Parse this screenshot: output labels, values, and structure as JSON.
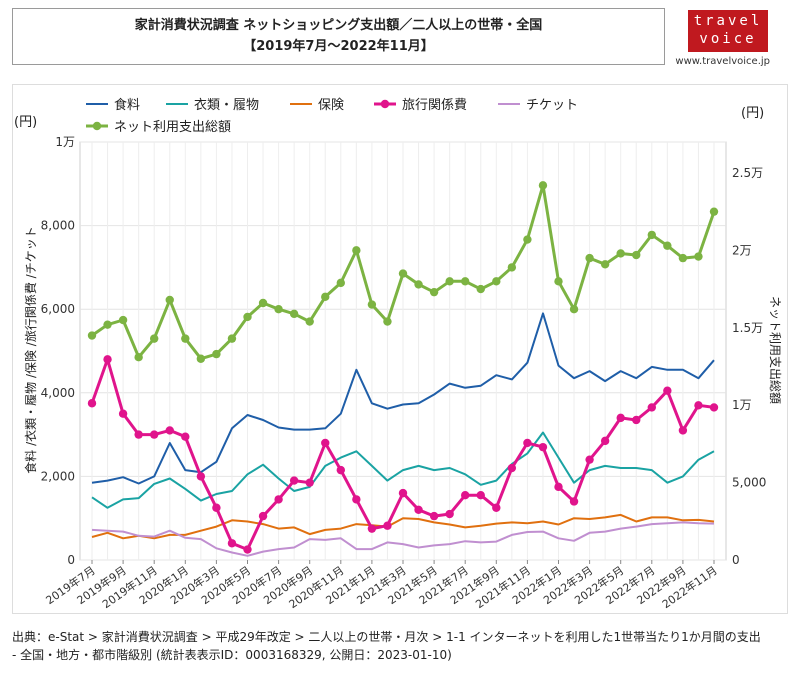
{
  "header": {
    "title_line1": "家計消費状況調査 ネットショッピング支出額／二人以上の世帯・全国",
    "title_line2": "【2019年7月～2022年11月】",
    "logo_line1": "travel",
    "logo_line2": "voice",
    "logo_url": "www.travelvoice.jp"
  },
  "source_line1": "出典：e-Stat > 家計消費状況調査 > 平成29年改定 > 二人以上の世帯・月次 > 1-1 インターネットを利用した1世帯当たり1か月間の支出",
  "source_line2": "- 全国・地方・都市階級別 (統計表表示ID：0003168329, 公開日：2023-01-10)",
  "chart_data": {
    "type": "line",
    "left_unit": "(円)",
    "right_unit": "(円)",
    "ylabel": "食料 /衣類・履物 /保険 /旅行関係費 /チケット",
    "y2label": "ネット利用支出総額",
    "ylim": [
      0,
      10000
    ],
    "y2lim": [
      0,
      27000
    ],
    "yticks": [
      0,
      2000,
      4000,
      6000,
      8000,
      10000
    ],
    "yticklabels": [
      "0",
      "2,000",
      "4,000",
      "6,000",
      "8,000",
      "1万"
    ],
    "y2ticks": [
      0,
      5000,
      10000,
      15000,
      20000,
      25000
    ],
    "y2ticklabels": [
      "0",
      "5,000",
      "1万",
      "1.5万",
      "2万",
      "2.5万"
    ],
    "xticklabels": [
      "2019年7月",
      "2019年9月",
      "2019年11月",
      "2020年1月",
      "2020年3月",
      "2020年5月",
      "2020年7月",
      "2020年9月",
      "2020年11月",
      "2021年1月",
      "2021年3月",
      "2021年5月",
      "2021年7月",
      "2021年9月",
      "2021年11月",
      "2022年1月",
      "2022年3月",
      "2022年5月",
      "2022年7月",
      "2022年9月",
      "2022年11月"
    ],
    "legend": [
      {
        "name": "食料",
        "color": "#1f5ea8",
        "marker": false
      },
      {
        "name": "衣類・履物",
        "color": "#1aa3a3",
        "marker": false
      },
      {
        "name": "保険",
        "color": "#e0700f",
        "marker": false
      },
      {
        "name": "旅行関係費",
        "color": "#e0148c",
        "marker": true
      },
      {
        "name": "チケット",
        "color": "#c08fd0",
        "marker": false
      },
      {
        "name": "ネット利用支出総額",
        "color": "#7cb342",
        "marker": true
      }
    ],
    "series": [
      {
        "name": "食料",
        "axis": "left",
        "color": "#1f5ea8",
        "width": 2,
        "marker": false,
        "values": [
          1850,
          1900,
          1980,
          1830,
          2000,
          2800,
          2150,
          2100,
          2350,
          3150,
          3470,
          3350,
          3170,
          3120,
          3120,
          3150,
          3500,
          4550,
          3750,
          3620,
          3720,
          3750,
          3960,
          4220,
          4120,
          4170,
          4420,
          4320,
          4720,
          5900,
          4650,
          4350,
          4520,
          4280,
          4520,
          4350,
          4620,
          4550,
          4550,
          4350,
          4780
        ]
      },
      {
        "name": "衣類・履物",
        "axis": "left",
        "color": "#1aa3a3",
        "width": 2,
        "marker": false,
        "values": [
          1500,
          1250,
          1450,
          1480,
          1820,
          1950,
          1700,
          1420,
          1580,
          1650,
          2050,
          2280,
          1950,
          1650,
          1750,
          2250,
          2450,
          2600,
          2250,
          1900,
          2150,
          2250,
          2150,
          2200,
          2050,
          1800,
          1900,
          2300,
          2550,
          3050,
          2450,
          1850,
          2150,
          2250,
          2200,
          2200,
          2150,
          1850,
          2000,
          2400,
          2600
        ]
      },
      {
        "name": "保険",
        "axis": "left",
        "color": "#e0700f",
        "width": 2,
        "marker": false,
        "values": [
          550,
          650,
          520,
          580,
          520,
          600,
          600,
          700,
          800,
          950,
          920,
          860,
          750,
          780,
          620,
          720,
          750,
          860,
          830,
          800,
          1000,
          980,
          900,
          850,
          780,
          820,
          870,
          900,
          880,
          920,
          850,
          1000,
          980,
          1020,
          1080,
          920,
          1020,
          1020,
          950,
          960,
          920
        ]
      },
      {
        "name": "旅行関係費",
        "axis": "left",
        "color": "#e0148c",
        "width": 3,
        "marker": true,
        "values": [
          3750,
          4800,
          3500,
          3000,
          3000,
          3100,
          2950,
          2000,
          1250,
          400,
          250,
          1050,
          1450,
          1900,
          1850,
          2800,
          2150,
          1450,
          750,
          820,
          1600,
          1200,
          1050,
          1100,
          1550,
          1550,
          1250,
          2200,
          2800,
          2700,
          1750,
          1400,
          2400,
          2850,
          3400,
          3350,
          3650,
          4050,
          3100,
          3700,
          3650
        ]
      },
      {
        "name": "チケット",
        "axis": "left",
        "color": "#c08fd0",
        "width": 2,
        "marker": false,
        "values": [
          720,
          700,
          680,
          580,
          560,
          700,
          530,
          500,
          280,
          180,
          100,
          200,
          260,
          300,
          500,
          480,
          520,
          260,
          260,
          420,
          380,
          300,
          350,
          380,
          450,
          420,
          440,
          600,
          670,
          680,
          520,
          460,
          650,
          680,
          750,
          800,
          860,
          880,
          900,
          880,
          870
        ]
      },
      {
        "name": "ネット利用支出総額",
        "axis": "right",
        "color": "#7cb342",
        "width": 3,
        "marker": true,
        "values": [
          14500,
          15200,
          15500,
          13100,
          14300,
          16800,
          14300,
          13000,
          13300,
          14300,
          15700,
          16600,
          16200,
          15900,
          15400,
          17000,
          17900,
          20000,
          16500,
          15400,
          18500,
          17800,
          17300,
          18000,
          18000,
          17500,
          18000,
          18900,
          20700,
          24200,
          18000,
          16200,
          19500,
          19100,
          19800,
          19700,
          21000,
          20300,
          19500,
          19600,
          22500
        ]
      }
    ]
  }
}
